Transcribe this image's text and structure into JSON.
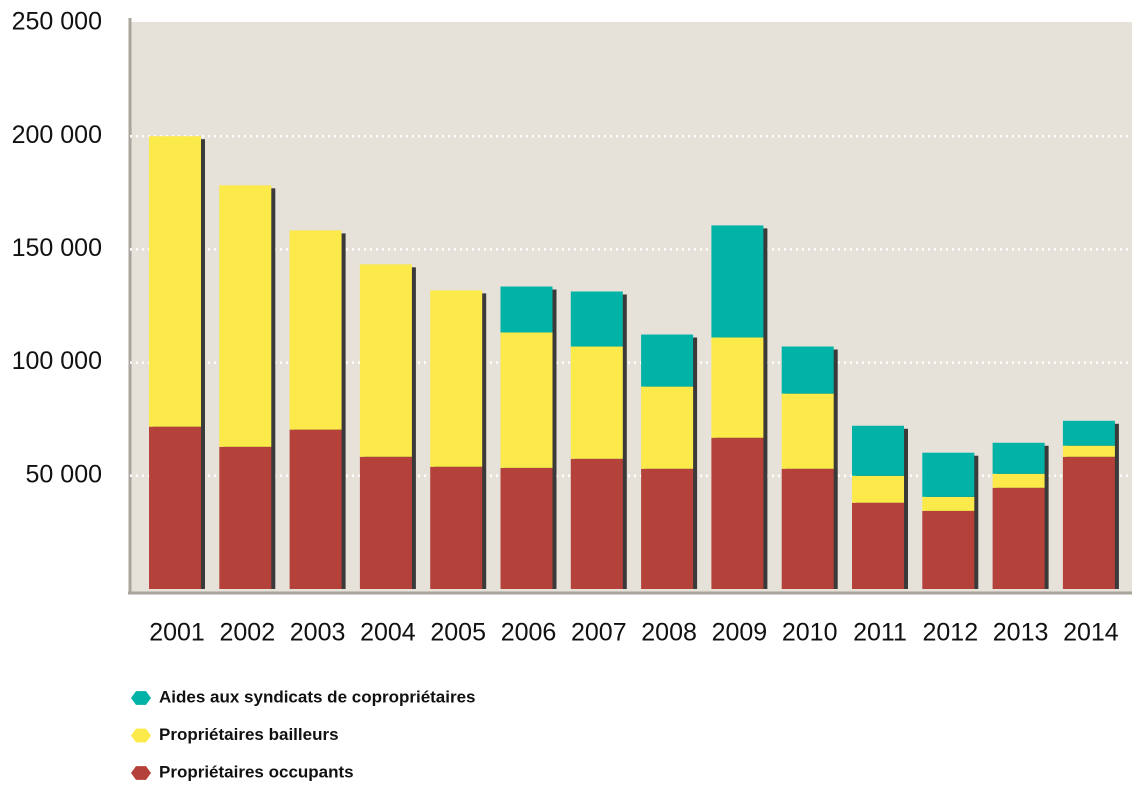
{
  "chart_data": {
    "type": "stacked_bar",
    "categories": [
      "2001",
      "2002",
      "2003",
      "2004",
      "2005",
      "2006",
      "2007",
      "2008",
      "2009",
      "2010",
      "2011",
      "2012",
      "2013",
      "2014"
    ],
    "series": [
      {
        "name": "Aides aux syndicats de copropriétaires",
        "color": "#00b3a6",
        "values": [
          0,
          0,
          0,
          0,
          0,
          20300,
          24300,
          23000,
          49500,
          20800,
          22100,
          19500,
          13700,
          11000
        ]
      },
      {
        "name": "Propriétaires bailleurs",
        "color": "#fce94a",
        "values": [
          128300,
          115500,
          88000,
          85000,
          77900,
          59800,
          49600,
          36300,
          44300,
          33200,
          11900,
          6200,
          6200,
          4900
        ]
      },
      {
        "name": "Propriétaires occupants",
        "color": "#b5423a",
        "values": [
          71700,
          62800,
          70400,
          58400,
          54000,
          53500,
          57500,
          53100,
          66800,
          53100,
          38100,
          34500,
          44700,
          58400
        ]
      }
    ],
    "ylim": [
      0,
      250000
    ],
    "yticks": [
      {
        "value": 50000,
        "label": "50 000"
      },
      {
        "value": 100000,
        "label": "100 000"
      },
      {
        "value": 150000,
        "label": "150 000"
      },
      {
        "value": 200000,
        "label": "200 000"
      },
      {
        "value": 250000,
        "label": "250 000"
      }
    ],
    "grid": true
  }
}
